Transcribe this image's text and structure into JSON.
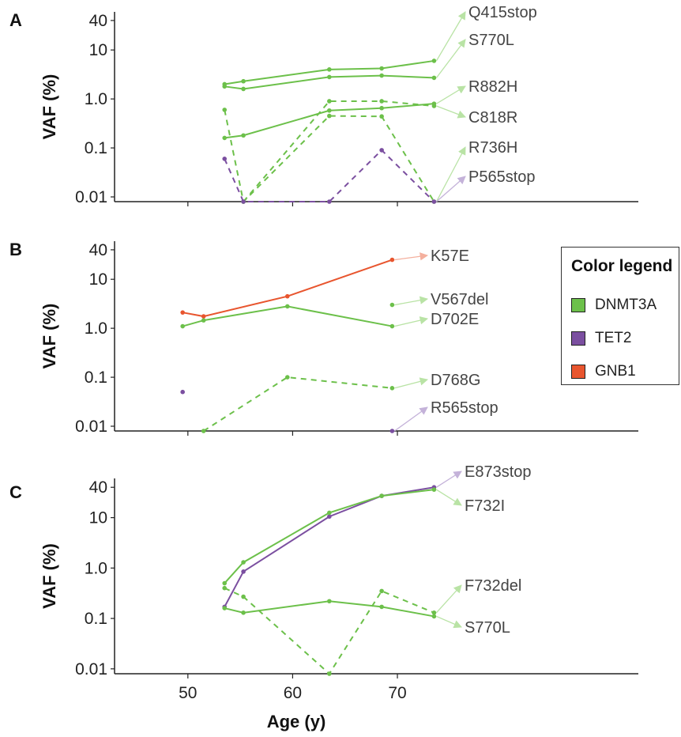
{
  "colors": {
    "DNMT3A": "#6cc04a",
    "TET2": "#7b4fa0",
    "GNB1": "#e8552e"
  },
  "legend": {
    "title": "Color legend",
    "items": [
      {
        "label": "DNMT3A",
        "color": "#6cc04a"
      },
      {
        "label": "TET2",
        "color": "#7b4fa0"
      },
      {
        "label": "GNB1",
        "color": "#e8552e"
      }
    ]
  },
  "xlabel": "Age (y)",
  "chart_data": [
    {
      "type": "line",
      "panel": "A",
      "ylabel": "VAF (%)",
      "yscale": "log",
      "ylim": [
        0.008,
        60
      ],
      "xlim": [
        43,
        93
      ],
      "yticks": [
        "0.01",
        "0.1",
        "1.0",
        "10",
        "40"
      ],
      "series": [
        {
          "name": "Q415stop",
          "gene": "DNMT3A",
          "dash": false,
          "x": [
            53.5,
            55.3,
            63.5,
            68.5,
            73.5
          ],
          "y": [
            2.0,
            2.3,
            4.0,
            4.2,
            6.0
          ]
        },
        {
          "name": "S770L",
          "gene": "DNMT3A",
          "dash": false,
          "x": [
            53.5,
            55.3,
            63.5,
            68.5,
            73.5
          ],
          "y": [
            1.8,
            1.6,
            2.8,
            3.0,
            2.7
          ]
        },
        {
          "name": "R882H",
          "gene": "DNMT3A",
          "dash": false,
          "x": [
            53.5,
            55.3,
            63.5,
            68.5,
            73.5
          ],
          "y": [
            0.16,
            0.18,
            0.58,
            0.65,
            0.8
          ]
        },
        {
          "name": "C818R",
          "gene": "DNMT3A",
          "dash": true,
          "x": [
            55.3,
            63.5,
            68.5,
            73.5
          ],
          "y": [
            0.008,
            0.9,
            0.9,
            0.72
          ]
        },
        {
          "name": "R736H",
          "gene": "DNMT3A",
          "dash": true,
          "x": [
            53.5,
            55.3,
            63.5,
            68.5,
            73.5
          ],
          "y": [
            0.6,
            0.008,
            0.45,
            0.44,
            0.008
          ]
        },
        {
          "name": "P565stop",
          "gene": "TET2",
          "dash": true,
          "x": [
            53.5,
            55.3,
            63.5,
            68.5,
            73.5
          ],
          "y": [
            0.06,
            0.008,
            0.008,
            0.09,
            0.008
          ]
        }
      ]
    },
    {
      "type": "line",
      "panel": "B",
      "ylabel": "VAF (%)",
      "yscale": "log",
      "ylim": [
        0.008,
        60
      ],
      "xlim": [
        43,
        93
      ],
      "yticks": [
        "0.01",
        "0.1",
        "1.0",
        "10",
        "40"
      ],
      "series": [
        {
          "name": "K57E",
          "gene": "GNB1",
          "dash": false,
          "x": [
            49.5,
            51.5,
            59.5,
            69.5
          ],
          "y": [
            2.1,
            1.75,
            4.5,
            25
          ]
        },
        {
          "name": "V567del",
          "gene": "DNMT3A",
          "dash": false,
          "x": [
            69.5
          ],
          "y": [
            3.0
          ]
        },
        {
          "name": "D702E",
          "gene": "DNMT3A",
          "dash": false,
          "x": [
            49.5,
            51.5,
            59.5,
            69.5
          ],
          "y": [
            1.1,
            1.45,
            2.8,
            1.1
          ]
        },
        {
          "name": "D768G",
          "gene": "DNMT3A",
          "dash": true,
          "x": [
            51.5,
            59.5,
            69.5
          ],
          "y": [
            0.008,
            0.1,
            0.06
          ]
        },
        {
          "name": "R565stop",
          "gene": "TET2",
          "dash": false,
          "x": [
            49.5,
            69.5
          ],
          "y": [
            0.05,
            0.008
          ]
        }
      ]
    },
    {
      "type": "line",
      "panel": "C",
      "ylabel": "VAF (%)",
      "yscale": "log",
      "ylim": [
        0.008,
        60
      ],
      "xlim": [
        43,
        93
      ],
      "yticks": [
        "0.01",
        "0.1",
        "1.0",
        "10",
        "40"
      ],
      "series": [
        {
          "name": "E873stop",
          "gene": "TET2",
          "dash": false,
          "x": [
            53.5,
            55.3,
            63.5,
            68.5,
            73.5
          ],
          "y": [
            0.17,
            0.85,
            10.5,
            27,
            40
          ]
        },
        {
          "name": "F732I",
          "gene": "DNMT3A",
          "dash": false,
          "x": [
            53.5,
            55.3,
            63.5,
            68.5,
            73.5
          ],
          "y": [
            0.5,
            1.3,
            12.5,
            27,
            36
          ]
        },
        {
          "name": "F732del",
          "gene": "DNMT3A",
          "dash": true,
          "x": [
            53.5,
            55.3,
            63.5,
            68.5,
            73.5
          ],
          "y": [
            0.4,
            0.27,
            0.008,
            0.35,
            0.13
          ]
        },
        {
          "name": "S770L",
          "gene": "DNMT3A",
          "dash": false,
          "x": [
            53.5,
            55.3,
            63.5,
            68.5,
            73.5
          ],
          "y": [
            0.16,
            0.13,
            0.22,
            0.17,
            0.11
          ]
        }
      ],
      "xticks": [
        "50",
        "60",
        "70"
      ]
    }
  ]
}
